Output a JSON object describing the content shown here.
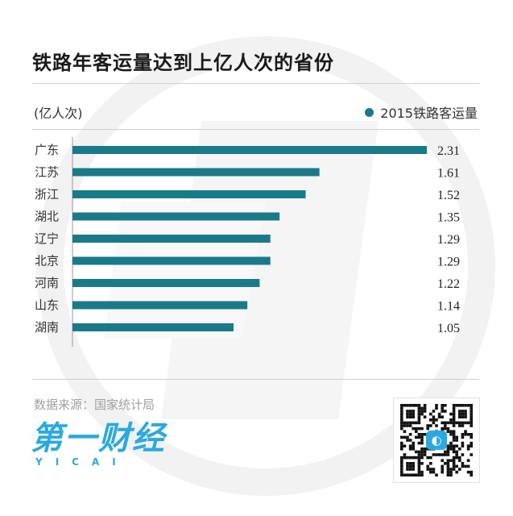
{
  "title": "铁路年客运量达到上亿人次的省份",
  "unit_label": "(亿人次)",
  "legend_label": "2015铁路客运量",
  "source": "数据来源：国家统计局",
  "logo": {
    "cn": "第一财经",
    "en": "YICAI"
  },
  "colors": {
    "bar": "#1a7a8a",
    "brand": "#2aa9e0"
  },
  "chart_data": {
    "type": "bar",
    "orientation": "horizontal",
    "categories": [
      "广东",
      "江苏",
      "浙江",
      "湖北",
      "辽宁",
      "北京",
      "河南",
      "山东",
      "湖南"
    ],
    "series": [
      {
        "name": "2015铁路客运量",
        "values": [
          2.31,
          1.61,
          1.52,
          1.35,
          1.29,
          1.29,
          1.22,
          1.14,
          1.05
        ]
      }
    ],
    "value_labels": [
      "2.31",
      "1.61",
      "1.52",
      "1.35",
      "1.29",
      "1.29",
      "1.22",
      "1.14",
      "1.05"
    ],
    "xlim": [
      0,
      2.31
    ],
    "legend_position": "top-right",
    "grid": false
  }
}
